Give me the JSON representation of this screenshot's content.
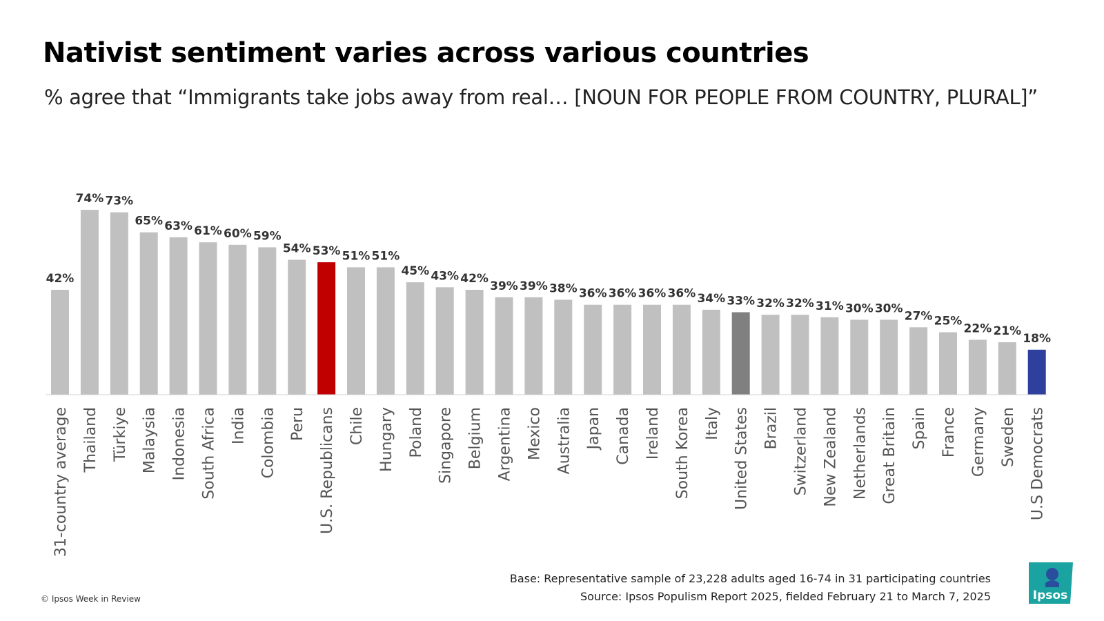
{
  "title": "Nativist sentiment varies across various countries",
  "subtitle": "% agree that “Immigrants take jobs away from real… [NOUN FOR PEOPLE FROM COUNTRY, PLURAL]”",
  "footer": {
    "base": "Base: Representative sample of 23,228 adults aged 16-74 in 31 participating countries",
    "source": "Source: Ipsos Populism Report 2025, fielded February 21 to March 7, 2025",
    "copyright": "© Ipsos Week in Review",
    "logo_text": "Ipsos"
  },
  "colors": {
    "default_bar": "#c0c0c0",
    "us_republicans": "#c00000",
    "united_states": "#808080",
    "us_democrats": "#2e3f9e",
    "axis_line": "#d0d0d0",
    "logo": "#1aa3a0"
  },
  "chart_data": {
    "type": "bar",
    "title": "",
    "xlabel": "",
    "ylabel": "",
    "ylim": [
      0,
      80
    ],
    "grid": false,
    "legend": "none",
    "categories": [
      "31-country average",
      "Thailand",
      "Türkiye",
      "Malaysia",
      "Indonesia",
      "South Africa",
      "India",
      "Colombia",
      "Peru",
      "U.S. Republicans",
      "Chile",
      "Hungary",
      "Poland",
      "Singapore",
      "Belgium",
      "Argentina",
      "Mexico",
      "Australia",
      "Japan",
      "Canada",
      "Ireland",
      "South Korea",
      "Italy",
      "United States",
      "Brazil",
      "Switzerland",
      "New Zealand",
      "Netherlands",
      "Great Britain",
      "Spain",
      "France",
      "Germany",
      "Sweden",
      "U.S Democrats"
    ],
    "values": [
      42,
      74,
      73,
      65,
      63,
      61,
      60,
      59,
      54,
      53,
      51,
      51,
      45,
      43,
      42,
      39,
      39,
      38,
      36,
      36,
      36,
      36,
      34,
      33,
      32,
      32,
      31,
      30,
      30,
      27,
      25,
      22,
      21,
      18
    ],
    "value_labels": [
      "42%",
      "74%",
      "73%",
      "65%",
      "63%",
      "61%",
      "60%",
      "59%",
      "54%",
      "53%",
      "51%",
      "51%",
      "45%",
      "43%",
      "42%",
      "39%",
      "39%",
      "38%",
      "36%",
      "36%",
      "36%",
      "36%",
      "34%",
      "33%",
      "32%",
      "32%",
      "31%",
      "30%",
      "30%",
      "27%",
      "25%",
      "22%",
      "21%",
      "18%"
    ],
    "highlights": {
      "U.S. Republicans": "us_republicans",
      "United States": "united_states",
      "U.S Democrats": "us_democrats"
    }
  }
}
